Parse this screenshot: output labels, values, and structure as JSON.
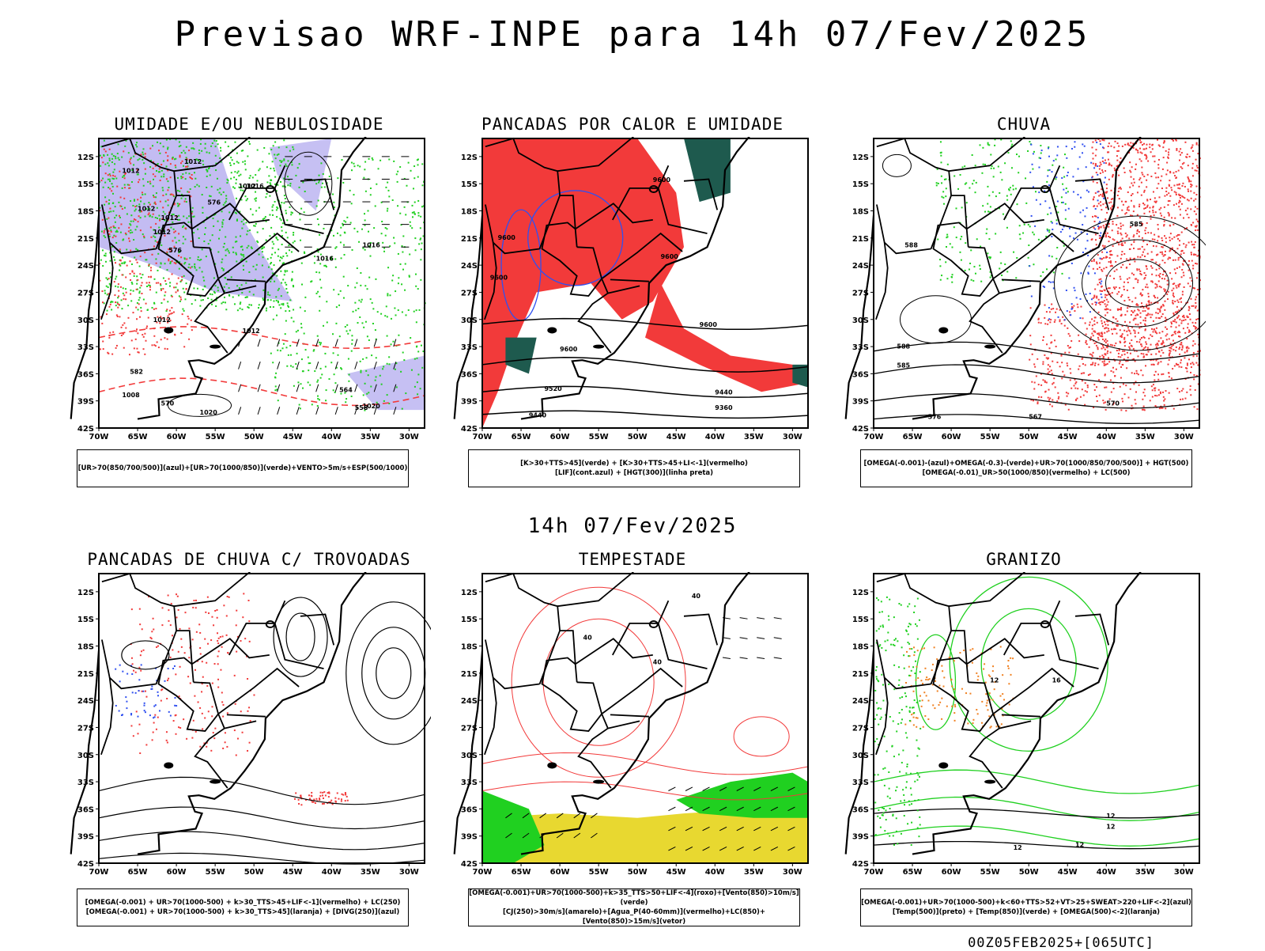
{
  "header": {
    "title": "Previsao WRF-INPE  para 14h 07/Fev/2025"
  },
  "mid": {
    "title": "14h 07/Fev/2025"
  },
  "footer": {
    "text": "00Z05FEB2025+[065UTC]"
  },
  "axes": {
    "lat_labels": [
      "12S",
      "15S",
      "18S",
      "21S",
      "24S",
      "27S",
      "30S",
      "33S",
      "36S",
      "39S",
      "42S"
    ],
    "lon_labels": [
      "70W",
      "65W",
      "60W",
      "55W",
      "50W",
      "45W",
      "40W",
      "35W",
      "30W"
    ]
  },
  "colors": {
    "red": "#f23a3a",
    "green": "#20d020",
    "lavender": "#b8b0f0",
    "blue": "#3050f0",
    "teal": "#1e5a4e",
    "yellow": "#e8d830",
    "orange": "#f08020"
  },
  "panels": [
    {
      "title": "UMIDADE E/OU NEBULOSIDADE",
      "legend": [
        "[UR>70(850/700/500)](azul)+[UR>70(1000/850)](verde)+VENTO>5m/s+ESP(500/1000)"
      ],
      "contour_labels": [
        "1012",
        "1012",
        "1012",
        "1016",
        "1012",
        "1012",
        "1016",
        "1016",
        "1012",
        "1020",
        "1008",
        "1012",
        "1020",
        "1012",
        "576",
        "576",
        "570",
        "582",
        "564",
        "558"
      ]
    },
    {
      "title": "PANCADAS POR CALOR E UMIDADE",
      "legend": [
        "[K>30+TTS>45](verde) + [K>30+TTS>45+LI<-1](vermelho)",
        "[LIF](cont.azul) + [HGT(300)](linha preta)"
      ],
      "contour_labels": [
        "9600",
        "9600",
        "9600",
        "9600",
        "9600",
        "9600",
        "9520",
        "9440",
        "9440",
        "9360"
      ]
    },
    {
      "title": "CHUVA",
      "legend": [
        "[OMEGA(-0.001)-(azul)+OMEGA(-0.3)-(verde)+UR>70(1000/850/700/500)] + HGT(500)",
        "[OMEGA(-0.01)_UR>50(1000/850)(vermelho) + LC(500)"
      ],
      "contour_labels": [
        "585",
        "588",
        "588",
        "585",
        "576",
        "567",
        "570"
      ]
    },
    {
      "title": "PANCADAS DE CHUVA C/ TROVOADAS",
      "legend": [
        "[OMEGA(-0.001) + UR>70(1000-500) + k>30_TTS>45+LIF<-1](vermelho) + LC(250)",
        "[OMEGA(-0.001) + UR>70(1000-500) + k>30_TTS>45](laranja) + [DIVG(250)](azul)"
      ],
      "contour_labels": []
    },
    {
      "title": "TEMPESTADE",
      "legend": [
        "[OMEGA(-0.001)+UR>70(1000-500)+k>35_TTS>50+LIF<-4](roxo)+[Vento(850)>10m/s](verde)",
        "[CJ(250)>30m/s](amarelo)+[Agua_P(40-60mm)](vermelho)+LC(850)+[Vento(850)>15m/s](vetor)"
      ],
      "contour_labels": [
        "40",
        "40",
        "40"
      ]
    },
    {
      "title": "GRANIZO",
      "legend": [
        "[OMEGA(-0.001)+UR>70(1000-500)+k<60+TTS>52+VT>25+SWEAT>220+LIF<-2](azul)",
        "[Temp(500)](preto) + [Temp(850)](verde) + [OMEGA(500)<-2](laranja)"
      ],
      "contour_labels": [
        "12",
        "12",
        "12",
        "12",
        "16",
        "12"
      ]
    }
  ]
}
